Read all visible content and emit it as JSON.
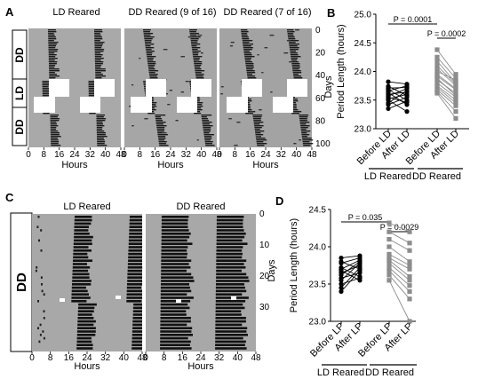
{
  "panels": {
    "A": {
      "label": "A",
      "titles": [
        "LD Reared",
        "DD Reared (9 of 16)",
        "DD Reared (7 of 16)"
      ],
      "conditions": [
        "DD",
        "LD",
        "DD"
      ],
      "x_ticks": [
        "0",
        "8",
        "16",
        "24",
        "32",
        "40",
        "48"
      ],
      "x_label": "Hours",
      "y_ticks": [
        "0",
        "20",
        "40",
        "60",
        "80",
        "100"
      ],
      "y_label": "Days"
    },
    "C": {
      "label": "C",
      "titles": [
        "LD Reared",
        "DD Reared"
      ],
      "conditions": [
        "DD"
      ],
      "x_ticks": [
        "0",
        "8",
        "16",
        "24",
        "32",
        "40",
        "48"
      ],
      "x_label": "Hours",
      "y_ticks": [
        "0",
        "10",
        "20",
        "30"
      ],
      "y_label": "Days"
    }
  },
  "chart_data": [
    {
      "panel": "B",
      "type": "scatter",
      "ylabel": "Period Length (hours)",
      "ylim": [
        23.0,
        25.0
      ],
      "yticks": [
        "23.0",
        "23.5",
        "24.0",
        "24.5",
        "25.0"
      ],
      "categories": [
        "Before LD",
        "After LD",
        "Before LD",
        "After LD"
      ],
      "groups": [
        "LD Reared",
        "DD Reared"
      ],
      "pvalues": [
        {
          "text": "P = 0.0001",
          "from": 0,
          "to": 2
        },
        {
          "text": "P = 0.0002",
          "from": 2,
          "to": 3
        }
      ],
      "series": [
        {
          "group": "LD Reared",
          "marker": "circle",
          "color": "#000000",
          "before": [
            23.82,
            23.74,
            23.71,
            23.68,
            23.66,
            23.63,
            23.6,
            23.57,
            23.55,
            23.52,
            23.5,
            23.45,
            23.42,
            23.35
          ],
          "after": [
            23.78,
            23.58,
            23.72,
            23.5,
            23.75,
            23.42,
            23.64,
            23.7,
            23.46,
            23.6,
            23.3,
            23.66,
            23.55,
            23.48
          ]
        },
        {
          "group": "DD Reared",
          "marker": "square",
          "color": "#8c8c8c",
          "before": [
            24.38,
            24.25,
            24.18,
            24.1,
            24.05,
            24.0,
            23.95,
            23.92,
            23.88,
            23.85,
            23.8,
            23.75,
            23.72,
            23.68,
            23.65,
            23.62
          ],
          "after": [
            23.95,
            23.88,
            23.8,
            23.78,
            23.75,
            23.85,
            23.7,
            23.68,
            23.58,
            23.62,
            23.55,
            23.5,
            23.45,
            23.4,
            23.3,
            23.18
          ]
        }
      ]
    },
    {
      "panel": "D",
      "type": "scatter",
      "ylabel": "Period Length (hours)",
      "ylim": [
        23.0,
        24.5
      ],
      "yticks": [
        "23.0",
        "23.5",
        "24.0",
        "24.5"
      ],
      "categories": [
        "Before LP",
        "After LP",
        "Before LP",
        "After LP"
      ],
      "groups": [
        "LD Reared",
        "DD Reared"
      ],
      "pvalues": [
        {
          "text": "P = 0.035",
          "from": 0,
          "to": 2
        },
        {
          "text": "P = 0.0029",
          "from": 2,
          "to": 3
        }
      ],
      "series": [
        {
          "group": "LD Reared",
          "marker": "circle",
          "color": "#000000",
          "before": [
            23.85,
            23.8,
            23.78,
            23.72,
            23.7,
            23.68,
            23.65,
            23.62,
            23.58,
            23.55,
            23.5,
            23.45,
            23.4
          ],
          "after": [
            23.88,
            23.7,
            23.85,
            23.6,
            23.82,
            23.55,
            23.75,
            23.8,
            23.65,
            23.78,
            23.58,
            23.72,
            23.68
          ]
        },
        {
          "group": "DD Reared",
          "marker": "square",
          "color": "#8c8c8c",
          "before": [
            24.32,
            24.2,
            24.1,
            24.0,
            23.9,
            23.85,
            23.82,
            23.78,
            23.72,
            23.68,
            23.62,
            23.55
          ],
          "after": [
            24.2,
            24.05,
            23.95,
            23.8,
            23.75,
            23.7,
            23.6,
            23.55,
            23.48,
            23.4,
            23.3,
            23.0
          ]
        }
      ]
    }
  ]
}
